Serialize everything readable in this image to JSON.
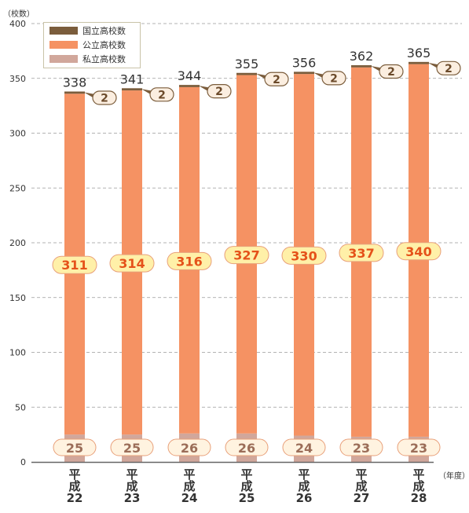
{
  "chart_data": {
    "type": "bar",
    "stacked": true,
    "ylabel": "（校数）",
    "xlabel": "（年度）",
    "ylim": [
      0,
      400
    ],
    "yticks": [
      0,
      50,
      100,
      150,
      200,
      250,
      300,
      350,
      400
    ],
    "grid": "dashed horizontal",
    "legend_position": "top-left",
    "categories": [
      [
        "平",
        "成",
        "22"
      ],
      [
        "平",
        "成",
        "23"
      ],
      [
        "平",
        "成",
        "24"
      ],
      [
        "平",
        "成",
        "25"
      ],
      [
        "平",
        "成",
        "26"
      ],
      [
        "平",
        "成",
        "27"
      ],
      [
        "平",
        "成",
        "28"
      ]
    ],
    "series": [
      {
        "name": "私立高校数",
        "color": "#d1a79b",
        "values": [
          25,
          25,
          26,
          26,
          24,
          23,
          23
        ]
      },
      {
        "name": "公立高校数",
        "color": "#f59263",
        "values": [
          311,
          314,
          316,
          327,
          330,
          337,
          340
        ]
      },
      {
        "name": "国立高校数",
        "color": "#7b5d3c",
        "values": [
          2,
          2,
          2,
          2,
          2,
          2,
          2
        ]
      }
    ],
    "totals": [
      338,
      341,
      344,
      355,
      356,
      362,
      365
    ],
    "legend_order": [
      "国立高校数",
      "公立高校数",
      "私立高校数"
    ]
  }
}
